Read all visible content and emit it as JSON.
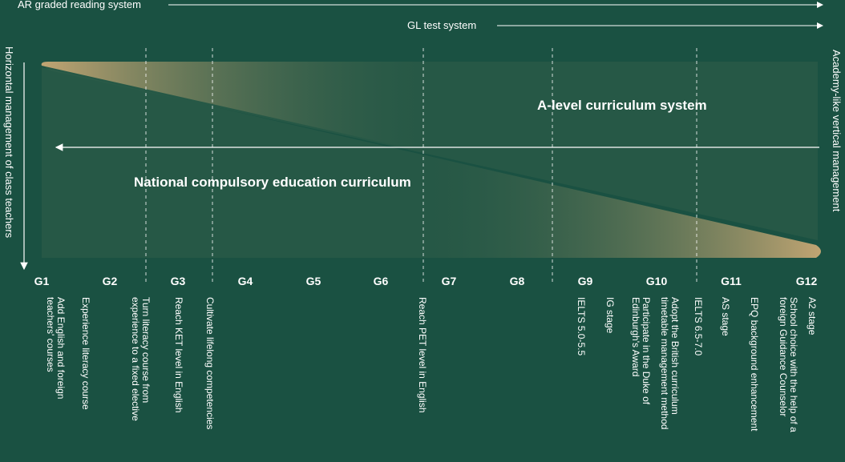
{
  "top_arrows": {
    "ar_system": "AR graded reading system",
    "gl_system": "GL test system"
  },
  "left_axis": "Horizontal management of class teachers",
  "right_axis": "Academy-like vertical management",
  "a_level": "A-level curriculum system",
  "national": "National compulsory education curriculum",
  "grades": [
    "G1",
    "G2",
    "G3",
    "G4",
    "G5",
    "G6",
    "G7",
    "G8",
    "G9",
    "G10",
    "G11",
    "G12"
  ],
  "notes": {
    "g1": "Add English and foreign\nteachers' courses",
    "g2": "Experience literacy course",
    "g2b": "Turn literacy course from\nexperience to a fixed elective",
    "g3": "Reach KET level in English",
    "g3b": "Cultivate lifelong competencies",
    "g6": "Reach PET level in English",
    "g9": "IELTS 5.0-5.5",
    "g9b": "IG stage",
    "g10": "Participate in the Duke of\nEdinburgh's Award",
    "g10b": "Adopt the British curriculum\ntimetable management method",
    "g10c": "IELTS 6.5-7.0",
    "g11": "AS stage",
    "g11b": "EPQ background enhancement",
    "g12": "School choice with the help of a\nforeign Guidance Counselor",
    "g12b": "A2 stage"
  },
  "colors": {
    "background": "#1a5142",
    "gold": "#c9a975",
    "line": "#ffffff"
  }
}
